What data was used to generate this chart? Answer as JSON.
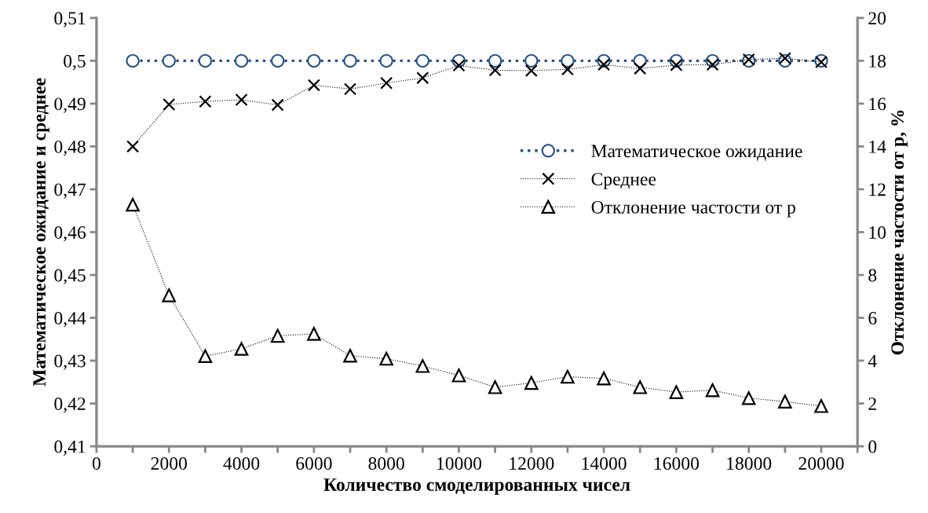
{
  "chart_data": {
    "type": "line",
    "xlabel": "Количество смоделированных чисел",
    "ylabel": "Математическое ожидание и среднее",
    "y2label": "Отклонение частости от p, %",
    "x": [
      1000,
      2000,
      3000,
      4000,
      5000,
      6000,
      7000,
      8000,
      9000,
      10000,
      11000,
      12000,
      13000,
      14000,
      15000,
      16000,
      17000,
      18000,
      19000,
      20000
    ],
    "series": [
      {
        "name": "Математическое ожидание",
        "color": "#2b5689",
        "marker": "circle",
        "line_style": "dotted",
        "values": [
          0.5,
          0.5,
          0.5,
          0.5,
          0.5,
          0.5,
          0.5,
          0.5,
          0.5,
          0.5,
          0.5,
          0.5,
          0.5,
          0.5,
          0.5,
          0.5,
          0.5,
          0.5,
          0.5,
          0.5
        ]
      },
      {
        "name": "Среднее",
        "color": "#000000",
        "marker": "cross",
        "line_style": "dotted",
        "values": [
          0.48,
          0.4898,
          0.4905,
          0.4909,
          0.4897,
          0.4943,
          0.4934,
          0.4948,
          0.496,
          0.4989,
          0.4978,
          0.4977,
          0.498,
          0.4991,
          0.4982,
          0.499,
          0.4991,
          0.5003,
          0.5006,
          0.4997
        ]
      },
      {
        "name": "Отклонение частости от p",
        "color": "#000000",
        "marker": "triangle",
        "line_style": "dotted",
        "axis": "y2",
        "values": [
          11.28,
          7.05,
          4.21,
          4.55,
          5.16,
          5.25,
          4.23,
          4.09,
          3.75,
          3.31,
          2.76,
          2.96,
          3.25,
          3.17,
          2.76,
          2.53,
          2.62,
          2.25,
          2.09,
          1.88
        ]
      }
    ],
    "xlim": [
      0,
      21000
    ],
    "xticks": [
      0,
      {
        "value": 1000,
        "label": null
      },
      2000,
      {
        "value": 3000,
        "label": null
      },
      4000,
      {
        "value": 5000,
        "label": null
      },
      6000,
      {
        "value": 7000,
        "label": null
      },
      8000,
      {
        "value": 9000,
        "label": null
      },
      10000,
      {
        "value": 11000,
        "label": null
      },
      12000,
      {
        "value": 13000,
        "label": null
      },
      14000,
      {
        "value": 15000,
        "label": null
      },
      16000,
      {
        "value": 17000,
        "label": null
      },
      18000,
      {
        "value": 19000,
        "label": null
      },
      20000,
      {
        "value": 21000,
        "label": null
      }
    ],
    "ylim": [
      0.41,
      0.51
    ],
    "yticks": [
      {
        "value": 0.41,
        "label": "0,41"
      },
      {
        "value": 0.42,
        "label": "0,42"
      },
      {
        "value": 0.43,
        "label": "0,43"
      },
      {
        "value": 0.44,
        "label": "0,44"
      },
      {
        "value": 0.45,
        "label": "0,45"
      },
      {
        "value": 0.46,
        "label": "0,46"
      },
      {
        "value": 0.47,
        "label": "0,47"
      },
      {
        "value": 0.48,
        "label": "0,48"
      },
      {
        "value": 0.49,
        "label": "0,49"
      },
      {
        "value": 0.5,
        "label": "0,5"
      },
      {
        "value": 0.51,
        "label": "0,51"
      }
    ],
    "y2lim": [
      0,
      20
    ],
    "y2ticks": [
      0,
      2,
      4,
      6,
      8,
      10,
      12,
      14,
      16,
      18,
      20
    ],
    "grid": false,
    "legend": "right"
  }
}
